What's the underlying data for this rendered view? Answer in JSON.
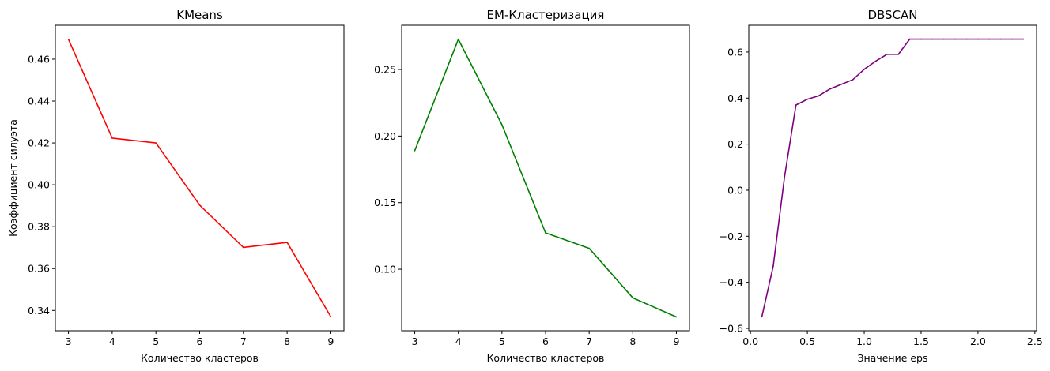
{
  "chart_data": [
    {
      "type": "line",
      "title": "KMeans",
      "xlabel": "Количество кластеров",
      "ylabel": "Коэффициент силуэта",
      "x": [
        3,
        4,
        5,
        6,
        7,
        8,
        9
      ],
      "series": [
        {
          "values": [
            0.4695,
            0.4223,
            0.42,
            0.3903,
            0.3701,
            0.3725,
            0.337
          ],
          "color": "#ff0000"
        }
      ],
      "xlim": [
        2.7,
        9.3
      ],
      "ylim": [
        0.3303,
        0.4762
      ],
      "xticks": [
        3,
        4,
        5,
        6,
        7,
        8,
        9
      ],
      "xtick_labels": [
        "3",
        "4",
        "5",
        "6",
        "7",
        "8",
        "9"
      ],
      "yticks": [
        0.34,
        0.36,
        0.38,
        0.4,
        0.42,
        0.44,
        0.46
      ],
      "ytick_labels": [
        "0.34",
        "0.36",
        "0.38",
        "0.40",
        "0.42",
        "0.44",
        "0.46"
      ],
      "grid": false
    },
    {
      "type": "line",
      "title": "EM-Кластеризация",
      "xlabel": "Количество кластеров",
      "ylabel": "",
      "x": [
        3,
        4,
        5,
        6,
        7,
        8,
        9
      ],
      "series": [
        {
          "values": [
            0.189,
            0.2727,
            0.2085,
            0.1273,
            0.1157,
            0.0785,
            0.0642
          ],
          "color": "#008000"
        }
      ],
      "xlim": [
        2.7,
        9.3
      ],
      "ylim": [
        0.0538,
        0.2832
      ],
      "xticks": [
        3,
        4,
        5,
        6,
        7,
        8,
        9
      ],
      "xtick_labels": [
        "3",
        "4",
        "5",
        "6",
        "7",
        "8",
        "9"
      ],
      "yticks": [
        0.1,
        0.15,
        0.2,
        0.25
      ],
      "ytick_labels": [
        "0.10",
        "0.15",
        "0.20",
        "0.25"
      ],
      "grid": false
    },
    {
      "type": "line",
      "title": "DBSCAN",
      "xlabel": "Значение eps",
      "ylabel": "",
      "x": [
        0.1,
        0.2,
        0.3,
        0.4,
        0.5,
        0.6,
        0.7,
        0.8,
        0.9,
        1.0,
        1.1,
        1.2,
        1.3,
        1.4,
        1.5,
        1.6,
        1.7,
        1.8,
        1.9,
        2.0,
        2.1,
        2.2,
        2.3,
        2.4
      ],
      "series": [
        {
          "values": [
            -0.55,
            -0.33,
            0.06,
            0.37,
            0.395,
            0.41,
            0.44,
            0.46,
            0.48,
            0.525,
            0.56,
            0.59,
            0.59,
            0.656,
            0.656,
            0.656,
            0.656,
            0.656,
            0.656,
            0.656,
            0.656,
            0.656,
            0.656,
            0.656
          ],
          "color": "#800080"
        }
      ],
      "xlim": [
        -0.015,
        2.515
      ],
      "ylim": [
        -0.6103,
        0.7163
      ],
      "xticks": [
        0.0,
        0.5,
        1.0,
        1.5,
        2.0,
        2.5
      ],
      "xtick_labels": [
        "0.0",
        "0.5",
        "1.0",
        "1.5",
        "2.0",
        "2.5"
      ],
      "yticks": [
        -0.6,
        -0.4,
        -0.2,
        0.0,
        0.2,
        0.4,
        0.6
      ],
      "ytick_labels": [
        "−0.6",
        "−0.4",
        "−0.2",
        "0.0",
        "0.2",
        "0.4",
        "0.6"
      ],
      "grid": false
    }
  ]
}
